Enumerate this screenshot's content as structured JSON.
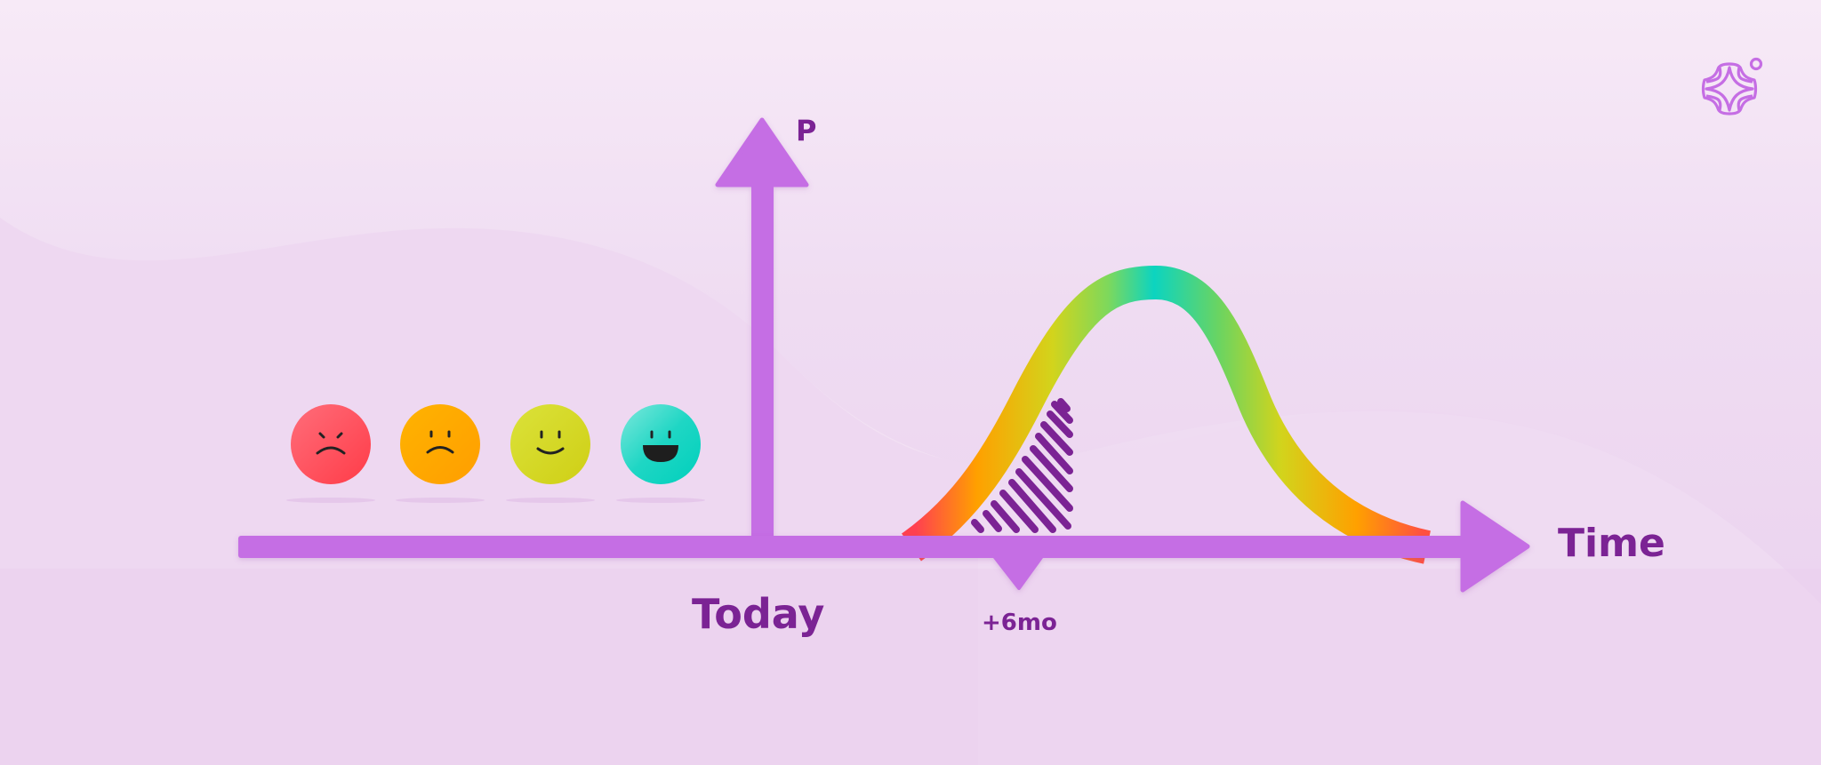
{
  "axes": {
    "y_label": "P",
    "x_label": "Time",
    "today_label": "Today",
    "marker_label": "+6mo"
  },
  "sentiment_faces": [
    {
      "mood": "angry",
      "color": "#ff4a5a"
    },
    {
      "mood": "sad",
      "color": "#ffa600"
    },
    {
      "mood": "smile",
      "color": "#d2d21e"
    },
    {
      "mood": "happy",
      "color": "#10d4c0"
    }
  ],
  "colors": {
    "axis": "#c56ee4",
    "text": "#7b2394",
    "hatch": "#7b2394"
  },
  "icons": {
    "logo": "sparkle-diamond-logo"
  }
}
